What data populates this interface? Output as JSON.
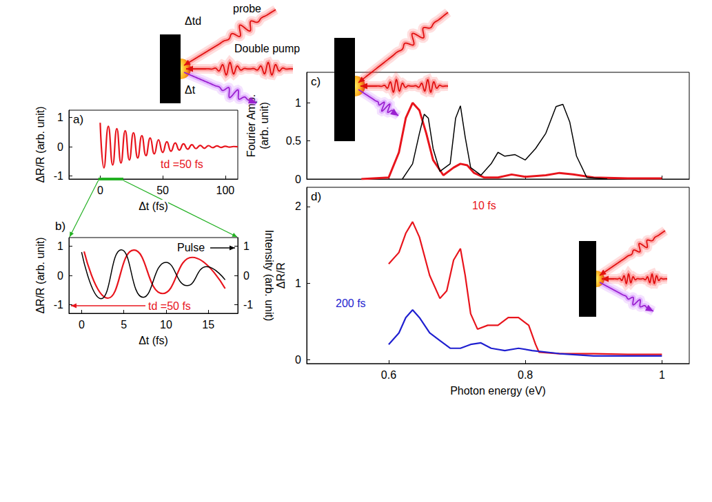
{
  "schematic": {
    "probe_label": "probe",
    "probe_delay": "Δtd",
    "pump_label": "Double pump",
    "delay": "Δt"
  },
  "chart_data": [
    {
      "panel": "a)",
      "type": "line",
      "x_label": "Δt (fs)",
      "y_label": "ΔR/R (arb. unit)",
      "xlim": [
        -25,
        110
      ],
      "xticks": [
        0,
        50,
        100
      ],
      "ylim": [
        -1.1,
        1.25
      ],
      "yticks": [
        -1,
        0,
        1
      ],
      "series": [
        {
          "name": "td =50 fs",
          "color": "#e8141c",
          "x": [
            0,
            3,
            6.5,
            10,
            13.3,
            16.6,
            20,
            23.3,
            26.6,
            30,
            33.3,
            36.6,
            40,
            43.3,
            46.6,
            50,
            53.3,
            56.6,
            60,
            63.3,
            66.6,
            70,
            73.3,
            76.6,
            80,
            83.3,
            86.6,
            90,
            93.3,
            96.6,
            100,
            103.3,
            106.6,
            110
          ],
          "values": [
            0.82,
            -0.72,
            0.7,
            -0.62,
            0.62,
            -0.55,
            0.55,
            -0.45,
            0.48,
            -0.38,
            0.38,
            -0.3,
            0.3,
            -0.24,
            0.24,
            -0.19,
            0.17,
            -0.15,
            0.13,
            -0.11,
            0.1,
            -0.08,
            0.07,
            -0.06,
            0.05,
            -0.05,
            0.04,
            -0.03,
            0.03,
            -0.02,
            0.02,
            -0.01,
            0.01,
            0
          ]
        }
      ]
    },
    {
      "panel": "b)",
      "type": "line",
      "x_label": "Δt (fs)",
      "y_label": "ΔR/R (arb. unit)",
      "y2_label": "Intensity (arb. unit)",
      "xlim": [
        -1.5,
        18.5
      ],
      "xticks": [
        0,
        5,
        10,
        15
      ],
      "ylim": [
        -1.3,
        1.3
      ],
      "yticks": [
        -1,
        0,
        1
      ],
      "y2lim": [
        -1.3,
        1.3
      ],
      "y2ticks": [
        -1,
        0,
        1
      ],
      "series": [
        {
          "name": "td =50 fs",
          "color": "#e8141c",
          "x": [
            0.3,
            3.1,
            6.2,
            9.6,
            13.1,
            17
          ],
          "values": [
            0.82,
            -0.78,
            0.87,
            -0.62,
            0.62,
            -0.45
          ]
        },
        {
          "name": "Pulse",
          "color": "#000000",
          "axis": "y2",
          "x": [
            0,
            2.3,
            4.7,
            7.3,
            10,
            12.5,
            14.8,
            17
          ],
          "values": [
            0.8,
            -0.8,
            0.88,
            -0.75,
            0.45,
            -0.35,
            0.3,
            -0.15
          ]
        }
      ]
    },
    {
      "panel": "c)",
      "type": "line",
      "y_label": "Fourier Amp. (arb. unit)",
      "tick_labels": "y",
      "xlim": [
        0.48,
        1.04
      ],
      "xticks": [
        0.6,
        0.8,
        1
      ],
      "ylim": [
        0,
        1.4
      ],
      "yticks": [
        0,
        0.5,
        1
      ],
      "series": [
        {
          "color": "#e8141c",
          "x": [
            0.56,
            0.6,
            0.615,
            0.625,
            0.635,
            0.645,
            0.655,
            0.665,
            0.68,
            0.695,
            0.705,
            0.715,
            0.725,
            0.74,
            0.76,
            0.78,
            0.8,
            0.83,
            0.85,
            0.87,
            0.9,
            0.95,
            1.0
          ],
          "values": [
            0,
            0.02,
            0.35,
            0.8,
            1,
            0.9,
            0.6,
            0.25,
            0.05,
            0.15,
            0.2,
            0.18,
            0.08,
            0.02,
            0.02,
            0.06,
            0.03,
            0.05,
            0.08,
            0.06,
            0.02,
            0.01,
            0.01
          ]
        },
        {
          "color": "#000000",
          "x": [
            0.62,
            0.635,
            0.645,
            0.652,
            0.658,
            0.665,
            0.675,
            0.69,
            0.698,
            0.705,
            0.712,
            0.72,
            0.735,
            0.75,
            0.76,
            0.77,
            0.785,
            0.8,
            0.815,
            0.83,
            0.845,
            0.855,
            0.865,
            0.875,
            0.89,
            0.92
          ],
          "values": [
            0,
            0.2,
            0.6,
            0.85,
            0.8,
            0.4,
            0.1,
            0.2,
            0.8,
            0.96,
            0.55,
            0.15,
            0.05,
            0.2,
            0.35,
            0.3,
            0.32,
            0.25,
            0.4,
            0.6,
            0.95,
            0.98,
            0.75,
            0.3,
            0.02,
            0
          ]
        }
      ]
    },
    {
      "panel": "d)",
      "type": "line",
      "x_label": "Photon energy (eV)",
      "y_label": "ΔR/R",
      "xlim": [
        0.48,
        1.04
      ],
      "xticks": [
        0.6,
        0.8,
        1
      ],
      "ylim": [
        -0.05,
        2.25
      ],
      "yticks": [
        0,
        1,
        2
      ],
      "series": [
        {
          "name": "10 fs",
          "color": "#e8141c",
          "x": [
            0.6,
            0.615,
            0.625,
            0.635,
            0.645,
            0.66,
            0.675,
            0.685,
            0.695,
            0.705,
            0.712,
            0.72,
            0.73,
            0.745,
            0.76,
            0.775,
            0.79,
            0.805,
            0.815,
            0.82,
            0.85,
            0.9,
            0.95,
            1.0
          ],
          "values": [
            1.25,
            1.4,
            1.65,
            1.8,
            1.6,
            1.1,
            0.8,
            0.9,
            1.3,
            1.45,
            1.1,
            0.6,
            0.4,
            0.45,
            0.45,
            0.55,
            0.55,
            0.45,
            0.2,
            0.1,
            0.08,
            0.08,
            0.07,
            0.07
          ]
        },
        {
          "name": "200 fs",
          "color": "#1f1fd0",
          "x": [
            0.6,
            0.615,
            0.625,
            0.635,
            0.645,
            0.66,
            0.675,
            0.69,
            0.705,
            0.72,
            0.735,
            0.75,
            0.77,
            0.79,
            0.81,
            0.85,
            0.9,
            0.95,
            1.0
          ],
          "values": [
            0.2,
            0.35,
            0.55,
            0.65,
            0.55,
            0.35,
            0.25,
            0.15,
            0.15,
            0.2,
            0.22,
            0.15,
            0.12,
            0.15,
            0.12,
            0.08,
            0.05,
            0.05,
            0.05
          ]
        }
      ]
    }
  ]
}
